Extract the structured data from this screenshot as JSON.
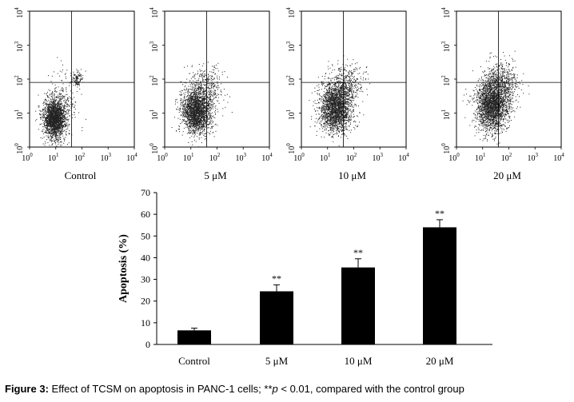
{
  "chart_data": [
    {
      "type": "scatter",
      "panels": [
        {
          "label": "Control"
        },
        {
          "label": "5 μM"
        },
        {
          "label": "10 μM"
        },
        {
          "label": "20 μM"
        }
      ],
      "axes": {
        "scale": "log",
        "range": [
          1,
          10000
        ],
        "tick_bases": [
          "10",
          "10",
          "10",
          "10",
          "10"
        ],
        "tick_exponents": [
          "0",
          "1",
          "2",
          "3",
          "4"
        ]
      },
      "quadrant_gate": {
        "x": 40,
        "y": 80
      }
    },
    {
      "type": "bar",
      "categories": [
        "Control",
        "5 μM",
        "10 μM",
        "20 μM"
      ],
      "values": [
        6.5,
        24.5,
        35.5,
        54
      ],
      "errors": [
        1,
        3,
        4,
        3.5
      ],
      "annotations": [
        "",
        "**",
        "**",
        "**"
      ],
      "ylabel": "Apoptosis (%)",
      "ylim": [
        0,
        70
      ],
      "yticks": [
        "0",
        "10",
        "20",
        "30",
        "40",
        "50",
        "60",
        "70"
      ],
      "colors": {
        "bar": "#000000"
      }
    }
  ],
  "caption": {
    "bold": "Figure 3:",
    "text1": " Effect of TCSM on apoptosis in PANC-1 cells; **",
    "italic": "p",
    "text2": " < 0.01, compared with the control group"
  }
}
